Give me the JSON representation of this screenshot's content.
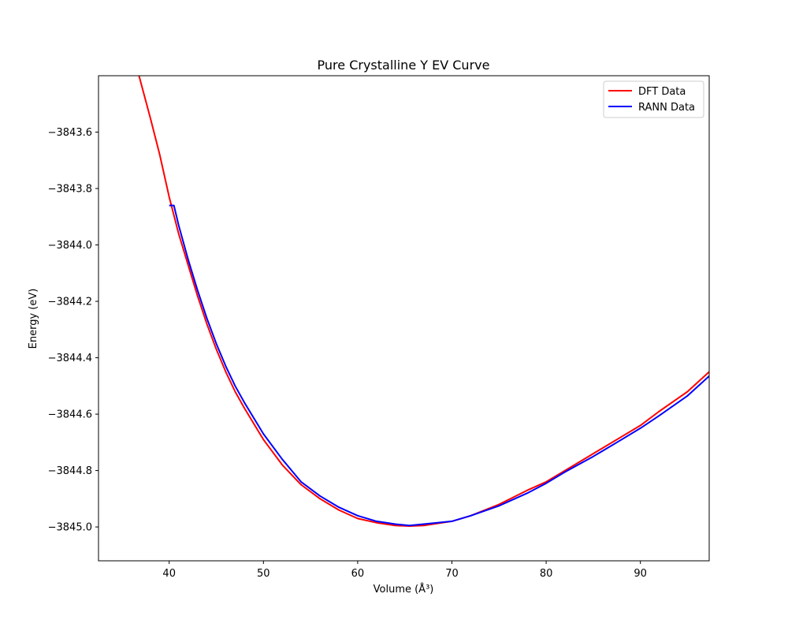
{
  "chart_data": {
    "type": "line",
    "title": "Pure Crystalline Y EV Curve",
    "xlabel": "Volume (Å³)",
    "ylabel": "Energy (eV)",
    "xlim": [
      32.5,
      97.3
    ],
    "ylim": [
      -3845.12,
      -3843.4
    ],
    "xticks": [
      40,
      50,
      60,
      70,
      80,
      90
    ],
    "xtick_labels": [
      "40",
      "50",
      "60",
      "70",
      "80",
      "90"
    ],
    "yticks": [
      -3843.6,
      -3843.8,
      -3844.0,
      -3844.2,
      -3844.4,
      -3844.6,
      -3844.8,
      -3845.0
    ],
    "ytick_labels": [
      "−3843.6",
      "−3843.8",
      "−3844.0",
      "−3844.2",
      "−3844.4",
      "−3844.6",
      "−3844.8",
      "−3845.0"
    ],
    "grid": false,
    "legend_position": "top-right",
    "series": [
      {
        "name": "DFT Data",
        "color": "#ff0000",
        "x": [
          36.8,
          38.0,
          39.0,
          40.0,
          41.0,
          42.0,
          43.0,
          44.0,
          45.0,
          46.0,
          47.0,
          48.0,
          50.0,
          52.0,
          54.0,
          56.0,
          58.0,
          60.0,
          62.0,
          64.0,
          65.5,
          67.0,
          70.0,
          72.0,
          75.0,
          78.0,
          80.0,
          82.0,
          85.0,
          88.0,
          90.0,
          92.0,
          95.0,
          97.3
        ],
        "y": [
          -3843.4,
          -3843.55,
          -3843.68,
          -3843.83,
          -3843.96,
          -3844.07,
          -3844.18,
          -3844.28,
          -3844.37,
          -3844.45,
          -3844.52,
          -3844.58,
          -3844.69,
          -3844.78,
          -3844.85,
          -3844.9,
          -3844.94,
          -3844.97,
          -3844.985,
          -3844.995,
          -3844.997,
          -3844.995,
          -3844.98,
          -3844.96,
          -3844.92,
          -3844.87,
          -3844.84,
          -3844.8,
          -3844.74,
          -3844.68,
          -3844.64,
          -3844.59,
          -3844.52,
          -3844.45
        ]
      },
      {
        "name": "RANN Data",
        "color": "#0000ff",
        "x": [
          40.0,
          40.5,
          41.0,
          42.0,
          43.0,
          44.0,
          45.0,
          46.0,
          47.0,
          48.0,
          50.0,
          52.0,
          54.0,
          56.0,
          58.0,
          60.0,
          62.0,
          64.0,
          65.5,
          67.0,
          70.0,
          72.0,
          75.0,
          78.0,
          80.0,
          82.0,
          85.0,
          88.0,
          90.0,
          92.0,
          95.0,
          97.3
        ],
        "y": [
          -3843.86,
          -3843.86,
          -3843.93,
          -3844.05,
          -3844.16,
          -3844.26,
          -3844.35,
          -3844.43,
          -3844.5,
          -3844.56,
          -3844.67,
          -3844.76,
          -3844.84,
          -3844.89,
          -3844.93,
          -3844.96,
          -3844.98,
          -3844.99,
          -3844.995,
          -3844.99,
          -3844.98,
          -3844.96,
          -3844.925,
          -3844.88,
          -3844.845,
          -3844.805,
          -3844.75,
          -3844.69,
          -3844.65,
          -3844.605,
          -3844.535,
          -3844.465
        ]
      }
    ]
  }
}
